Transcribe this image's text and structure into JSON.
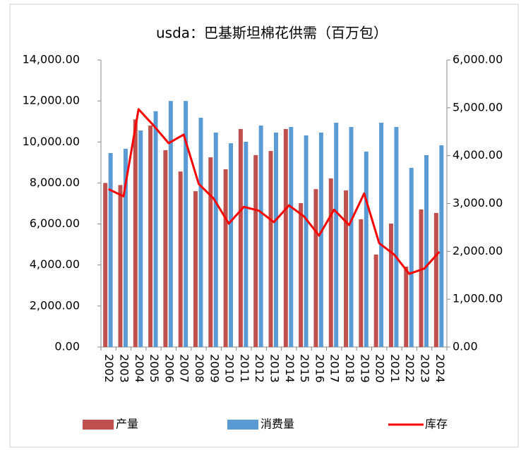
{
  "chart_data": {
    "type": "bar_line",
    "title": "usda：巴基斯坦棉花供需（百万包）",
    "categories": [
      "2002",
      "2003",
      "2004",
      "2005",
      "2006",
      "2007",
      "2008",
      "2009",
      "2010",
      "2011",
      "2012",
      "2013",
      "2014",
      "2015",
      "2016",
      "2017",
      "2018",
      "2019",
      "2020",
      "2021",
      "2022",
      "2023",
      "2024"
    ],
    "series": [
      {
        "name": "产量",
        "color": "#c0504d",
        "type": "bar",
        "values": [
          8000,
          7900,
          11100,
          10800,
          9600,
          8560,
          7600,
          9250,
          8670,
          10630,
          9360,
          9560,
          10630,
          7020,
          7700,
          8220,
          7640,
          6230,
          4510,
          6020,
          3920,
          6710,
          6540
        ]
      },
      {
        "name": "消费量",
        "color": "#5b9bd5",
        "type": "bar",
        "values": [
          9460,
          9670,
          10560,
          11500,
          12000,
          12000,
          11180,
          10460,
          9940,
          10010,
          10800,
          10460,
          10730,
          10320,
          10460,
          10940,
          10730,
          9530,
          10940,
          10730,
          8740,
          9360,
          9840
        ]
      },
      {
        "name": "库存",
        "color": "#ff0000",
        "type": "line",
        "axis": "y2",
        "values": [
          3300,
          3150,
          4970,
          4630,
          4260,
          4440,
          3410,
          3100,
          2580,
          2930,
          2850,
          2610,
          2960,
          2730,
          2330,
          2870,
          2550,
          3210,
          2170,
          1930,
          1530,
          1640,
          1990
        ]
      }
    ],
    "ylim": [
      0,
      14000
    ],
    "yticks": [
      {
        "value": 0,
        "label": "0.00"
      },
      {
        "value": 2000,
        "label": "2,000.00"
      },
      {
        "value": 4000,
        "label": "4,000.00"
      },
      {
        "value": 6000,
        "label": "6,000.00"
      },
      {
        "value": 8000,
        "label": "8,000.00"
      },
      {
        "value": 10000,
        "label": "10,000.00"
      },
      {
        "value": 12000,
        "label": "12,000.00"
      },
      {
        "value": 14000,
        "label": "14,000.00"
      }
    ],
    "y2lim": [
      0,
      6000
    ],
    "y2ticks": [
      {
        "value": 0,
        "label": "0.00"
      },
      {
        "value": 1000,
        "label": "1,000.00"
      },
      {
        "value": 2000,
        "label": "2,000.00"
      },
      {
        "value": 3000,
        "label": "3,000.00"
      },
      {
        "value": 4000,
        "label": "4,000.00"
      },
      {
        "value": 5000,
        "label": "5,000.00"
      },
      {
        "value": 6000,
        "label": "6,000.00"
      }
    ]
  }
}
